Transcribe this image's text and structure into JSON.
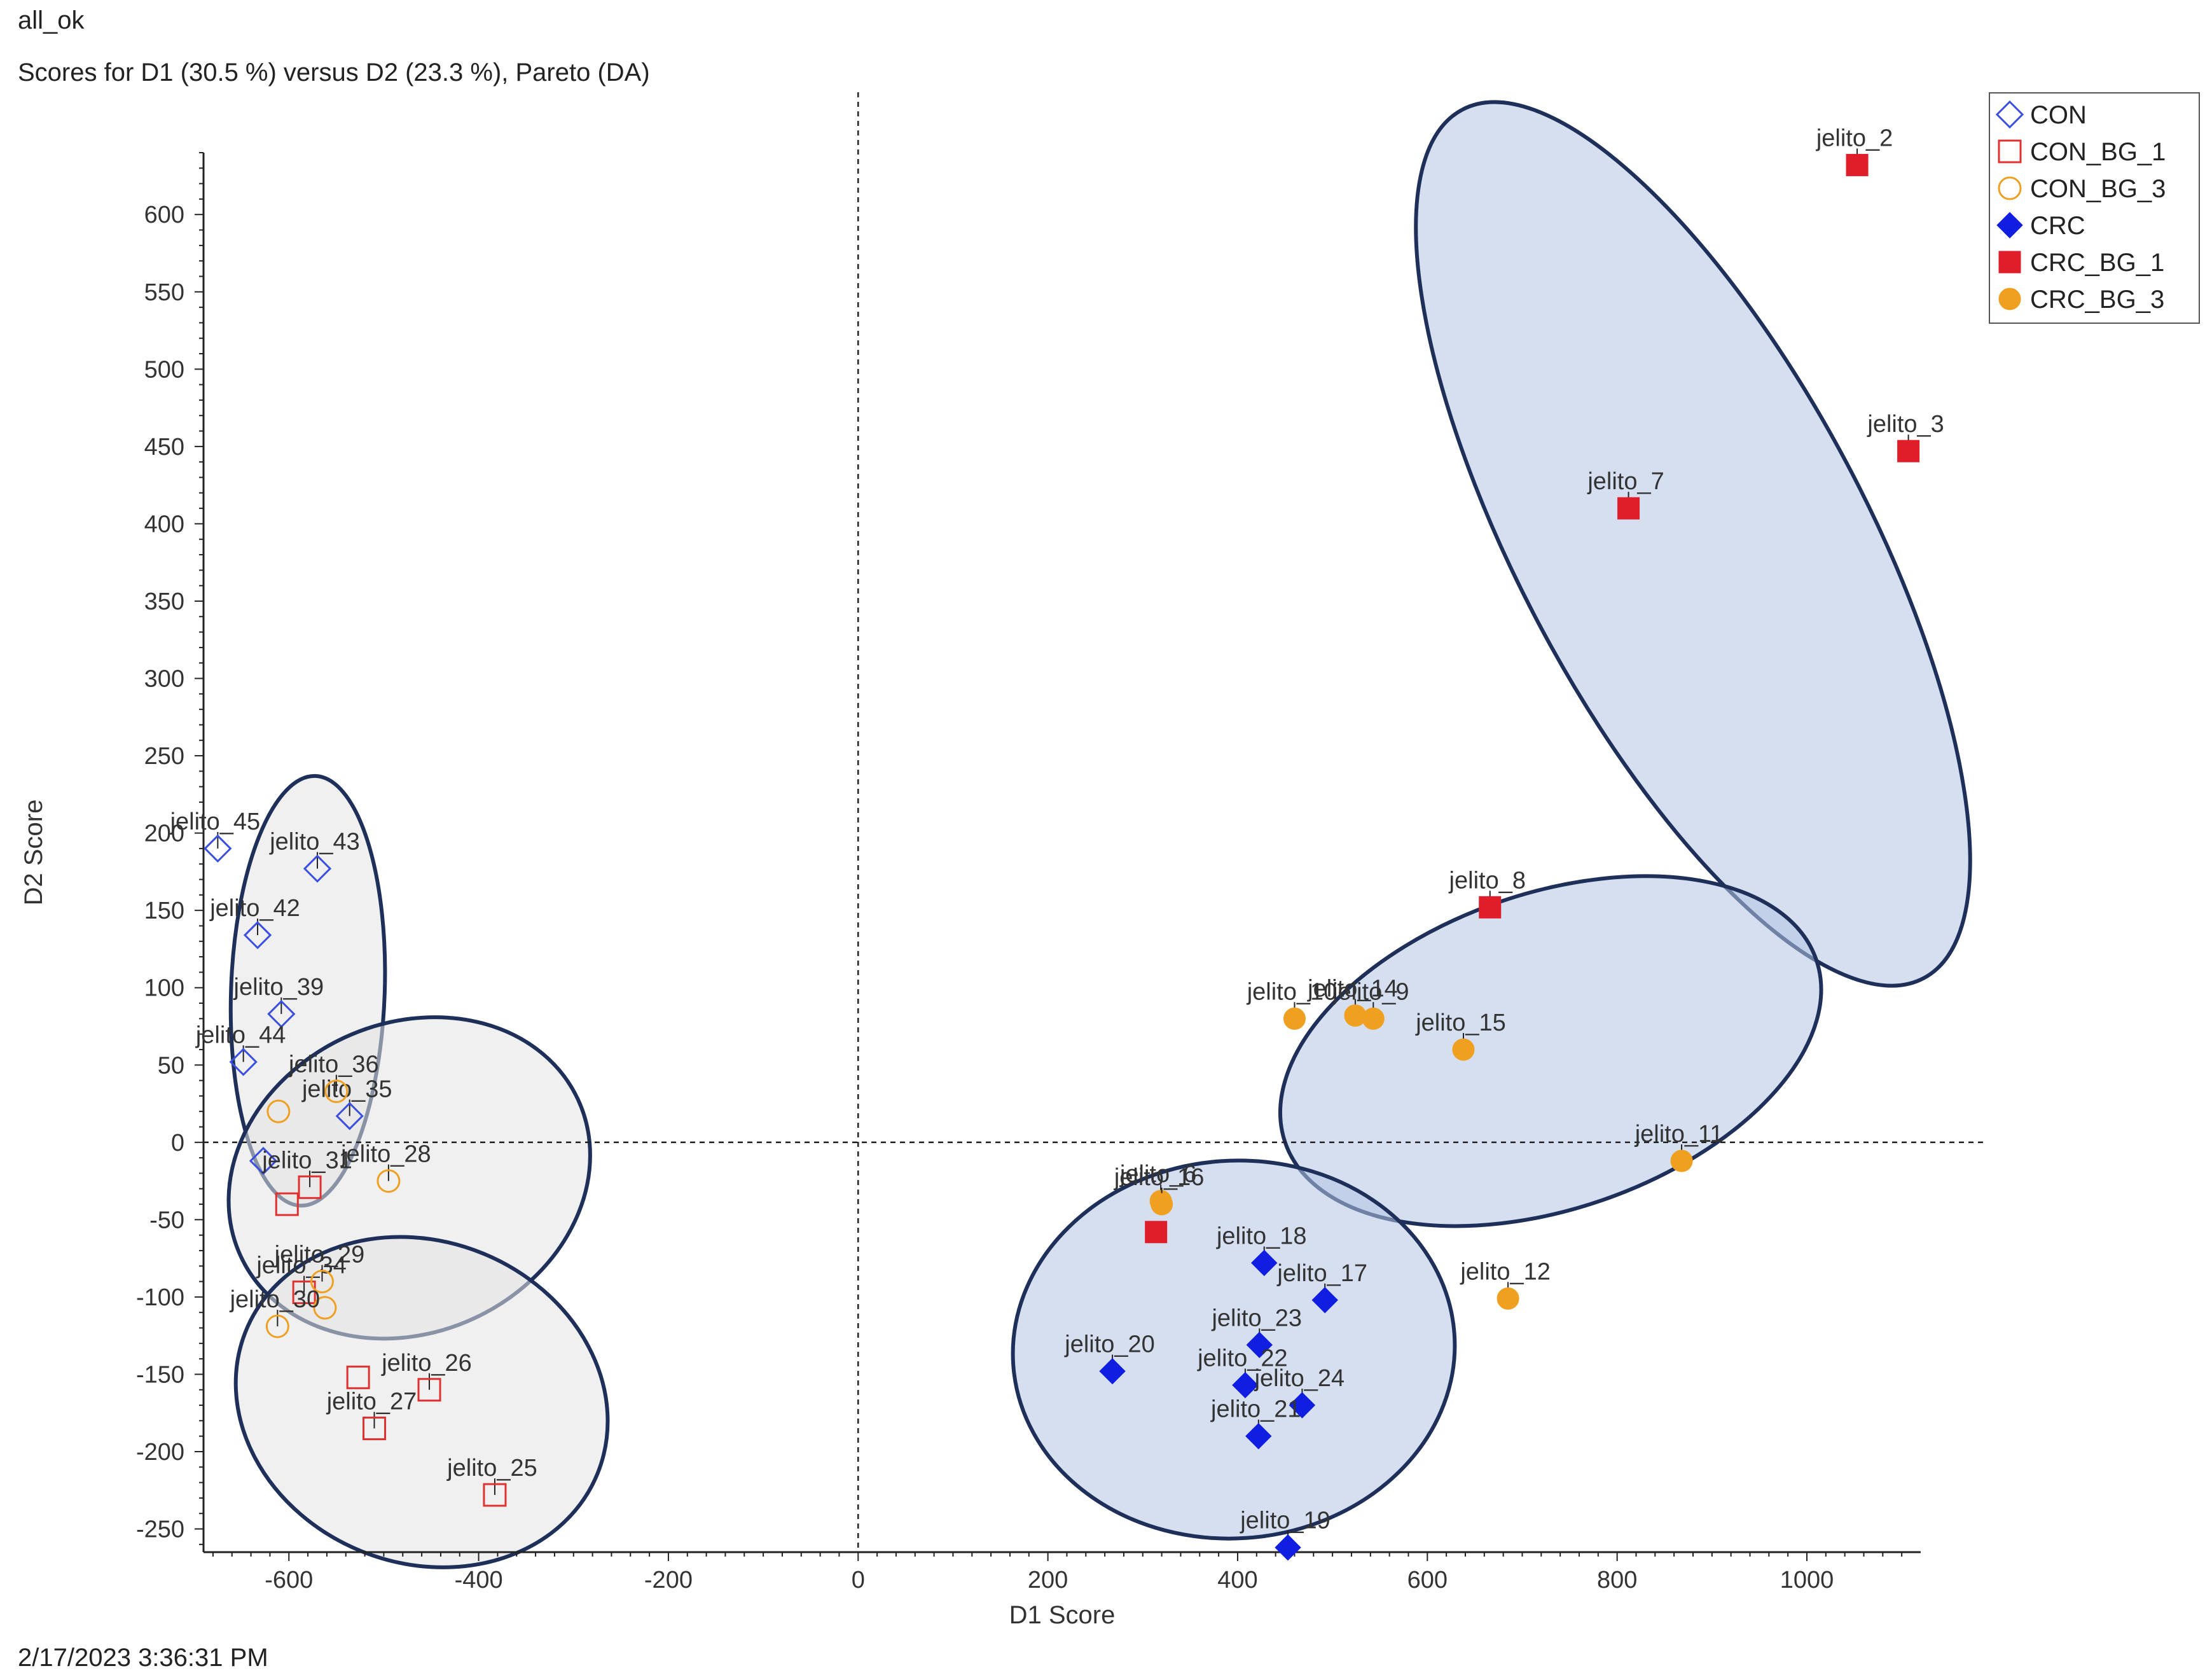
{
  "header": {
    "line1": "all_ok",
    "line2": "Scores for D1 (30.5 %) versus D2 (23.3 %), Pareto (DA)"
  },
  "footer": {
    "timestamp": "2/17/2023 3:36:31 PM"
  },
  "chart_data": {
    "type": "scatter",
    "xlabel": "D1 Score",
    "ylabel": "D2 Score",
    "xlim": [
      -690,
      1120
    ],
    "ylim": [
      -265,
      640
    ],
    "x_ticks": [
      -600,
      -400,
      -200,
      0,
      200,
      400,
      600,
      800,
      1000
    ],
    "y_ticks": [
      600,
      550,
      500,
      450,
      400,
      350,
      300,
      250,
      200,
      150,
      100,
      50,
      0,
      -50,
      -100,
      -150,
      -200,
      -250
    ],
    "zero_lines": "dashed",
    "legend_position": "top-right",
    "series": [
      {
        "name": "CON",
        "marker": "diamond-open",
        "color": "#3a4fe0",
        "points": [
          {
            "label": "jelito_45",
            "x": -675,
            "y": 190
          },
          {
            "label": "jelito_43",
            "x": -570,
            "y": 177
          },
          {
            "label": "jelito_42",
            "x": -633,
            "y": 134
          },
          {
            "label": "jelito_39",
            "x": -608,
            "y": 83
          },
          {
            "label": "jelito_44",
            "x": -648,
            "y": 52
          },
          {
            "label": "jelito_35",
            "x": -536,
            "y": 17
          },
          {
            "label": "",
            "x": -627,
            "y": -12
          }
        ]
      },
      {
        "name": "CON_BG_1",
        "marker": "square-open",
        "color": "#e03030",
        "points": [
          {
            "label": "jelito_31",
            "x": -578,
            "y": -29
          },
          {
            "label": "",
            "x": -602,
            "y": -40
          },
          {
            "label": "jelito_34",
            "x": -584,
            "y": -97
          },
          {
            "label": "jelito_26",
            "x": -452,
            "y": -160
          },
          {
            "label": "",
            "x": -527,
            "y": -152
          },
          {
            "label": "jelito_27",
            "x": -510,
            "y": -185
          },
          {
            "label": "jelito_25",
            "x": -383,
            "y": -228
          }
        ]
      },
      {
        "name": "CON_BG_3",
        "marker": "circle-open",
        "color": "#f0a020",
        "points": [
          {
            "label": "jelito_36",
            "x": -550,
            "y": 33
          },
          {
            "label": "",
            "x": -611,
            "y": 20
          },
          {
            "label": "jelito_28",
            "x": -495,
            "y": -25
          },
          {
            "label": "jelito_29",
            "x": -565,
            "y": -90
          },
          {
            "label": "",
            "x": -562,
            "y": -107
          },
          {
            "label": "jelito_30",
            "x": -612,
            "y": -119
          }
        ]
      },
      {
        "name": "CRC",
        "marker": "diamond-filled",
        "color": "#0f1ee0",
        "points": [
          {
            "label": "jelito_18",
            "x": 428,
            "y": -78
          },
          {
            "label": "jelito_17",
            "x": 492,
            "y": -102
          },
          {
            "label": "jelito_23",
            "x": 423,
            "y": -131
          },
          {
            "label": "jelito_20",
            "x": 268,
            "y": -148
          },
          {
            "label": "jelito_22",
            "x": 408,
            "y": -157
          },
          {
            "label": "jelito_24",
            "x": 468,
            "y": -170
          },
          {
            "label": "jelito_21",
            "x": 422,
            "y": -190
          },
          {
            "label": "jelito_19",
            "x": 453,
            "y": -262
          }
        ]
      },
      {
        "name": "CRC_BG_1",
        "marker": "square-filled",
        "color": "#e01e2a",
        "points": [
          {
            "label": "jelito_2",
            "x": 1053,
            "y": 632
          },
          {
            "label": "jelito_3",
            "x": 1107,
            "y": 447
          },
          {
            "label": "jelito_7",
            "x": 812,
            "y": 410
          },
          {
            "label": "jelito_8",
            "x": 666,
            "y": 152
          },
          {
            "label": "",
            "x": 314,
            "y": -58
          }
        ]
      },
      {
        "name": "CRC_BG_3",
        "marker": "circle-filled",
        "color": "#f0a020",
        "points": [
          {
            "label": "jelito_10",
            "x": 460,
            "y": 80
          },
          {
            "label": "jelito_14",
            "x": 524,
            "y": 82
          },
          {
            "label": "jelito_9",
            "x": 543,
            "y": 80
          },
          {
            "label": "jelito_15",
            "x": 638,
            "y": 60
          },
          {
            "label": "jelito_11",
            "x": 868,
            "y": -12
          },
          {
            "label": "jelito_6",
            "x": 319,
            "y": -38
          },
          {
            "label": "jelito_16",
            "x": 320,
            "y": -40
          },
          {
            "label": "jelito_12",
            "x": 685,
            "y": -101
          }
        ]
      }
    ],
    "ellipses": [
      {
        "cx": -580,
        "cy": 98,
        "rx": 81,
        "ry": 139,
        "angle": 2,
        "fill": "#e3e3e3"
      },
      {
        "cx": -473,
        "cy": -23,
        "rx": 196,
        "ry": 100,
        "angle": -25,
        "fill": "#e3e3e3"
      },
      {
        "cx": -460,
        "cy": -168,
        "rx": 200,
        "ry": 104,
        "angle": 22,
        "fill": "#e3e3e3"
      },
      {
        "cx": 880,
        "cy": 387,
        "rx": 183,
        "ry": 318,
        "angle": -28,
        "fill": "#b3c4e4"
      },
      {
        "cx": 730,
        "cy": 59,
        "rx": 296,
        "ry": 102,
        "angle": -19,
        "fill": "#b3c4e4"
      },
      {
        "cx": 396,
        "cy": -134,
        "rx": 199,
        "ry": 143,
        "angle": 86,
        "fill": "#b3c4e4"
      }
    ],
    "ellipse_stroke": "#1e2f5a"
  }
}
